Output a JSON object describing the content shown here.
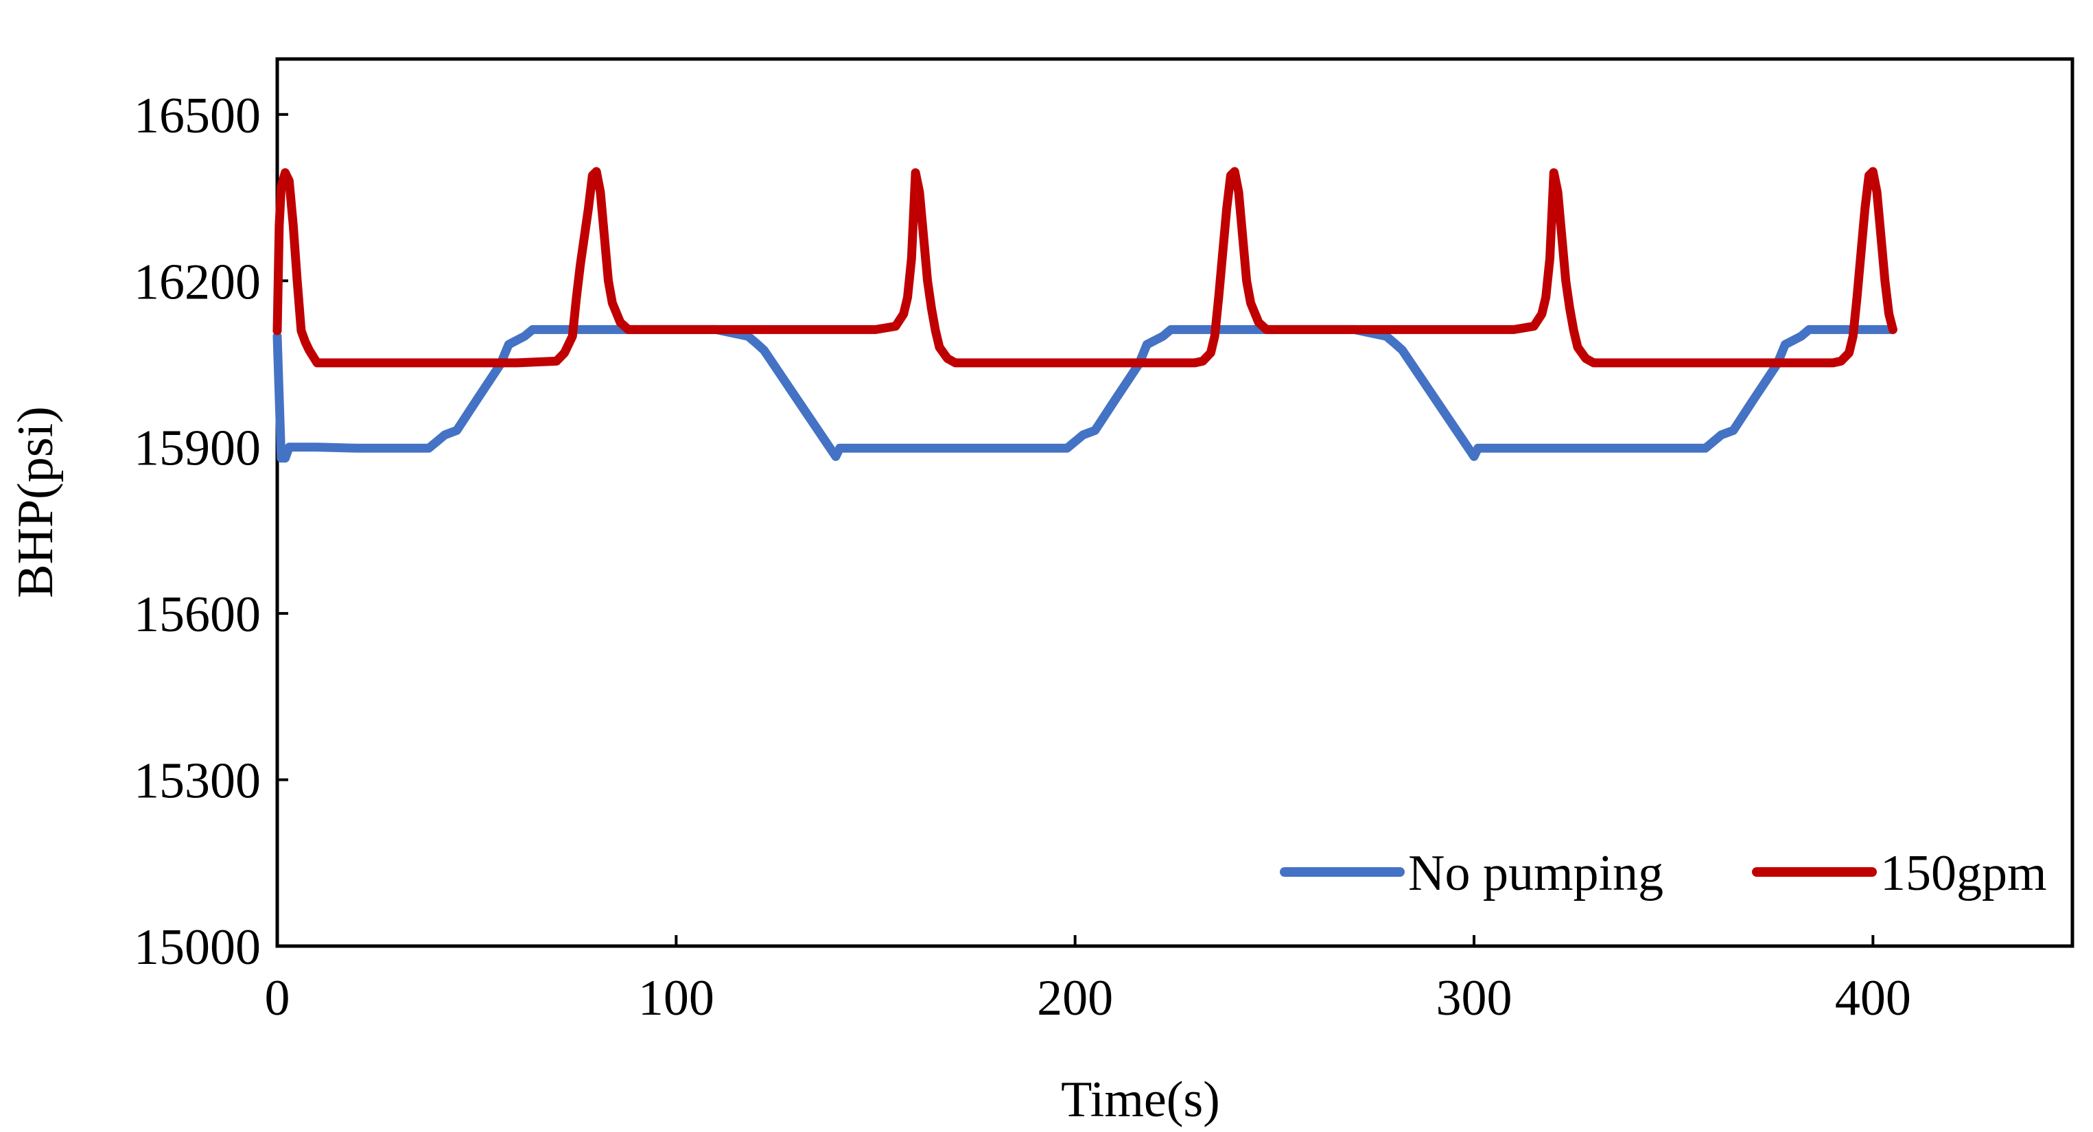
{
  "chart_data": {
    "type": "line",
    "title": "",
    "xlabel": "Time(s)",
    "ylabel": "BHP(psi)",
    "xlim": [
      0,
      450
    ],
    "ylim": [
      15000,
      16600
    ],
    "xticks": [
      0,
      100,
      200,
      300,
      400
    ],
    "yticks": [
      15000,
      15300,
      15600,
      15900,
      16200,
      16500
    ],
    "x_tick_labels": [
      "0",
      "100",
      "200",
      "300",
      "400"
    ],
    "y_tick_labels": [
      "15000",
      "15300",
      "15600",
      "15900",
      "16200",
      "16500"
    ],
    "grid": false,
    "legend_position": "bottom-right",
    "series": [
      {
        "name": "No pumping",
        "color": "#4472C4",
        "x": [
          0,
          1,
          2,
          3,
          10,
          20,
          38,
          42,
          45,
          50,
          56,
          58,
          62,
          64,
          70,
          110,
          118,
          120,
          122,
          140,
          141,
          160,
          190,
          198,
          202,
          205,
          210,
          216,
          218,
          222,
          224,
          230,
          270,
          278,
          280,
          282,
          300,
          301,
          320,
          350,
          358,
          362,
          365,
          370,
          376,
          378,
          382,
          384,
          390,
          405
        ],
        "y": [
          16100,
          15880,
          15880,
          15900,
          15900,
          15898,
          15898,
          15922,
          15930,
          15985,
          16050,
          16085,
          16100,
          16112,
          16112,
          16112,
          16100,
          16088,
          16075,
          15883,
          15898,
          15898,
          15898,
          15898,
          15922,
          15930,
          15985,
          16050,
          16085,
          16100,
          16112,
          16112,
          16112,
          16100,
          16088,
          16075,
          15883,
          15898,
          15898,
          15898,
          15898,
          15922,
          15930,
          15985,
          16050,
          16085,
          16100,
          16112,
          16112,
          16112
        ]
      },
      {
        "name": "150gpm",
        "color": "#C00000",
        "x": [
          0,
          0.5,
          1,
          2,
          3,
          4,
          5,
          6,
          7,
          8,
          10,
          20,
          60,
          70,
          72,
          74,
          75,
          76,
          78,
          79,
          80,
          81,
          82,
          83,
          84,
          86,
          88,
          90,
          130,
          150,
          155,
          157,
          158,
          159,
          160,
          161,
          162,
          163,
          164,
          165,
          166,
          168,
          170,
          210,
          230,
          232,
          234,
          235,
          236,
          238,
          239,
          240,
          241,
          242,
          243,
          244,
          246,
          248,
          250,
          290,
          310,
          315,
          317,
          318,
          319,
          320,
          321,
          322,
          323,
          324,
          325,
          326,
          328,
          330,
          370,
          390,
          392,
          394,
          395,
          396,
          398,
          399,
          400,
          401,
          402,
          403,
          404,
          405
        ],
        "y": [
          16110,
          16300,
          16370,
          16395,
          16380,
          16300,
          16200,
          16110,
          16090,
          16075,
          16052,
          16052,
          16052,
          16055,
          16070,
          16100,
          16170,
          16230,
          16330,
          16390,
          16397,
          16360,
          16280,
          16200,
          16160,
          16125,
          16112,
          16112,
          16112,
          16112,
          16118,
          16140,
          16170,
          16240,
          16395,
          16360,
          16280,
          16200,
          16150,
          16110,
          16080,
          16060,
          16052,
          16052,
          16052,
          16055,
          16070,
          16100,
          16170,
          16330,
          16390,
          16397,
          16360,
          16280,
          16200,
          16160,
          16125,
          16112,
          16112,
          16112,
          16112,
          16118,
          16140,
          16170,
          16240,
          16395,
          16360,
          16280,
          16200,
          16150,
          16110,
          16080,
          16060,
          16052,
          16052,
          16052,
          16055,
          16070,
          16100,
          16170,
          16330,
          16390,
          16397,
          16360,
          16280,
          16200,
          16140,
          16112
        ]
      }
    ]
  }
}
